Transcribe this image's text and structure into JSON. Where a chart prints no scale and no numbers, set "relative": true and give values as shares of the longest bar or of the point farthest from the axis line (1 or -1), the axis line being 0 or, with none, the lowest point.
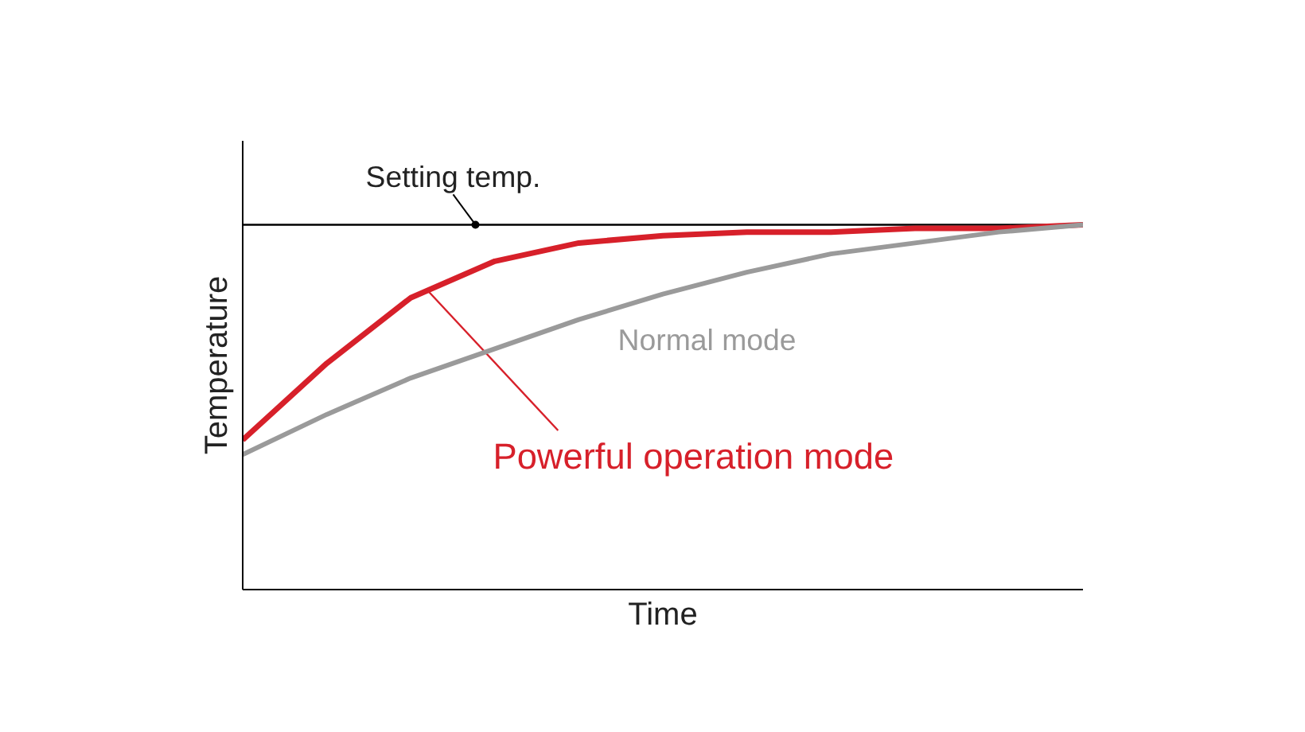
{
  "chart_data": {
    "type": "line",
    "relative": true,
    "xlabel": "Time",
    "ylabel": "Temperature",
    "categories": [
      null,
      null,
      null,
      null,
      null,
      null,
      null,
      null,
      null,
      null,
      null
    ],
    "series": [
      {
        "name": "Powerful operation mode",
        "color": "#d7202a",
        "values": [
          0.41,
          0.62,
          0.8,
          0.9,
          0.95,
          0.97,
          0.98,
          0.98,
          0.99,
          0.99,
          1.0
        ]
      },
      {
        "name": "Normal mode",
        "color": "#9a9a9a",
        "values": [
          0.37,
          0.48,
          0.58,
          0.66,
          0.74,
          0.81,
          0.87,
          0.92,
          0.95,
          0.98,
          1.0
        ]
      }
    ],
    "ref_lines": [
      {
        "axis": "y",
        "value": 1.0,
        "label": "Setting temp.",
        "color": "#000000",
        "line_style": "solid"
      }
    ],
    "legend": false,
    "marker": "none",
    "line_style": "solid"
  }
}
